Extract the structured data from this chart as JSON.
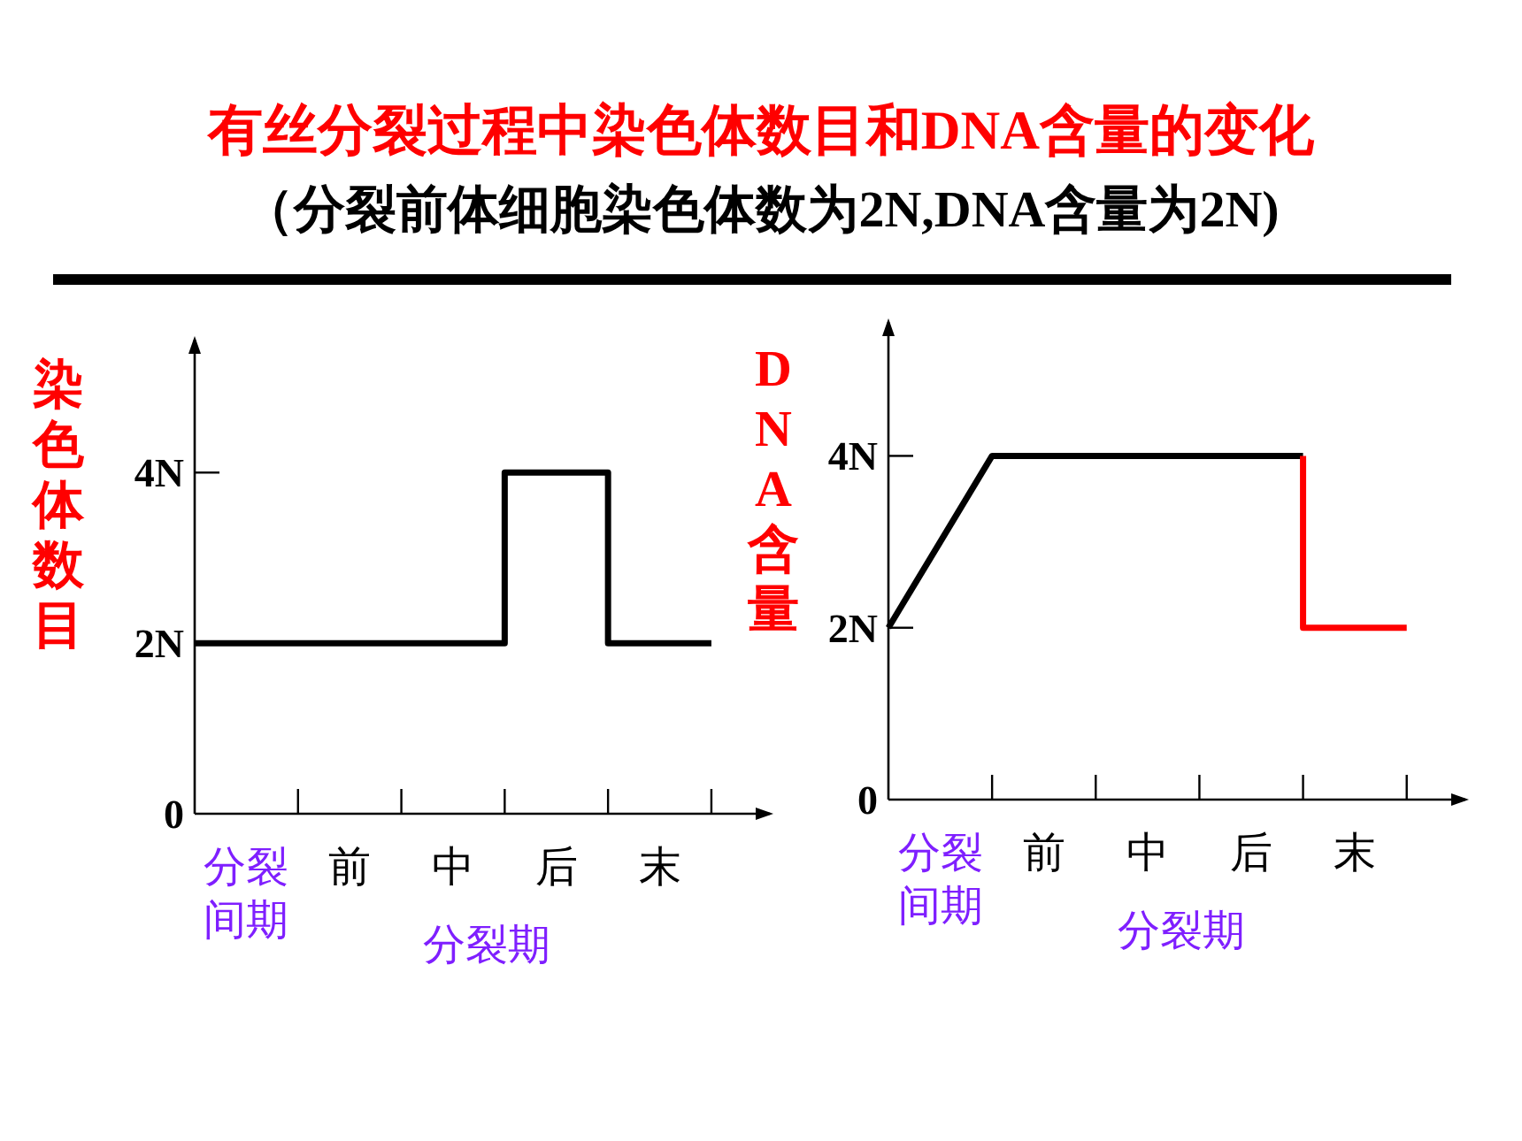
{
  "chart_data": [
    {
      "type": "step",
      "title": "有丝分裂过程中染色体数目和DNA含量的变化",
      "subtitle": "（分裂前体细胞染色体数为2N,DNA含量为2N)",
      "ylabel": "染色体数目",
      "xlabel": "分裂期",
      "categories": [
        null,
        "分裂间期",
        null,
        "前",
        null,
        "中",
        null,
        "后",
        null,
        "末",
        null
      ],
      "ylim": [
        0,
        5.6
      ],
      "yticks": [
        {
          "value": 0,
          "label": "0"
        },
        {
          "value": 2,
          "label": "2N"
        },
        {
          "value": 4,
          "label": "4N"
        }
      ],
      "series": [
        {
          "color": "#000000",
          "values": [
            2,
            2,
            2,
            2,
            2,
            2,
            2,
            4,
            4,
            2,
            2
          ]
        }
      ]
    },
    {
      "type": "line",
      "ylabel": "DNA含量",
      "xlabel": "分裂期",
      "categories": [
        null,
        "分裂间期",
        null,
        "前",
        null,
        "中",
        null,
        "后",
        null,
        "末",
        null
      ],
      "ylim": [
        0,
        5.6
      ],
      "yticks": [
        {
          "value": 0,
          "label": "0"
        },
        {
          "value": 2,
          "label": "2N"
        },
        {
          "value": 4,
          "label": "4N"
        }
      ],
      "series": [
        {
          "color": "#000000",
          "values": [
            2,
            3,
            4,
            4,
            4,
            4,
            4,
            4,
            4,
            null,
            null
          ]
        },
        {
          "type": "step",
          "color": "#ff0000",
          "values": [
            null,
            null,
            null,
            null,
            null,
            null,
            null,
            null,
            4,
            2,
            2
          ]
        }
      ]
    }
  ]
}
